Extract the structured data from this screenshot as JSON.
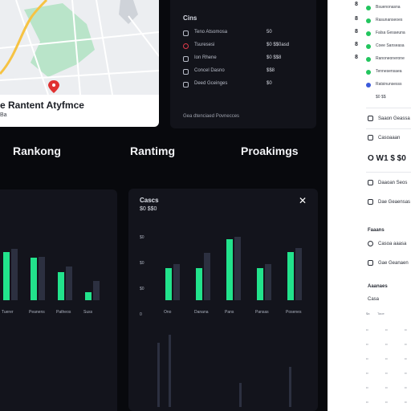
{
  "map": {
    "caption": "e Rantent Atyfmce",
    "subcaption": "Ba"
  },
  "stats": {
    "title": "Cins",
    "rows": [
      {
        "label": "Teno Atsomosa",
        "value": "50"
      },
      {
        "label": "Tsuresesi",
        "value": "$0 $$0asd"
      },
      {
        "label": "Ion Rhene",
        "value": "$0 $$8"
      },
      {
        "label": "Concel Dasno",
        "value": "$$8"
      },
      {
        "label": "Deed Gceinges",
        "value": "$0"
      }
    ],
    "footer": "Gea dtenciaed Povnecces"
  },
  "headings": {
    "left": "Rankong",
    "middle": "Rantimg",
    "right": "Proakimgs"
  },
  "chart_left": {
    "x_labels": [
      "Tuerer",
      "Peanens",
      "Patheos",
      "Suss"
    ]
  },
  "chart_mid": {
    "title": "Cascs",
    "subtitle": "$0 $$0",
    "y_labels": [
      "$0",
      "$0",
      "$0",
      "0"
    ],
    "x_labels": [
      "Ono",
      "Danana",
      "Pans",
      "Pansas",
      "Posenes"
    ]
  },
  "chart_data": [
    {
      "type": "bar",
      "categories": [
        "Tuerer",
        "Peanens",
        "Patheos",
        "Suss"
      ],
      "series": [
        {
          "values": [
            75,
            66,
            44,
            13
          ]
        },
        {
          "values": [
            80,
            68,
            52,
            30
          ]
        }
      ],
      "ylim": [
        0,
        100
      ]
    },
    {
      "type": "bar",
      "title": "Cascs",
      "categories": [
        "Ono",
        "Danana",
        "Pans",
        "Pansas",
        "Posenes"
      ],
      "series": [
        {
          "values": [
            45,
            44,
            84,
            45,
            67
          ]
        },
        {
          "values": [
            50,
            66,
            88,
            50,
            72
          ]
        }
      ],
      "ylim": [
        0,
        100
      ]
    }
  ],
  "right_panel": {
    "list": [
      {
        "text": "Bsuenonasna",
        "color": "#22c55e"
      },
      {
        "text": "Rasunanseoes",
        "color": "#22c55e"
      },
      {
        "text": "Falsa Gesaeuna",
        "color": "#22c55e"
      },
      {
        "text": "Coee Sanseasa",
        "color": "#22c55e"
      },
      {
        "text": "Ranoneonerone",
        "color": "#22c55e"
      },
      {
        "text": "Tennesensaea",
        "color": "#22c55e"
      },
      {
        "text": "Ratsinunsesss",
        "color": "#3b5bdb"
      }
    ],
    "row_value": "$0 $$",
    "items": [
      {
        "text": "Saaon Geassa"
      },
      {
        "text": "Casoaaan"
      }
    ],
    "big_value": "O W1 $ $0",
    "items2": [
      {
        "text": "Daaoan Seos"
      },
      {
        "text": "Dae Geaensas"
      }
    ],
    "section": "Faaans",
    "items3": [
      {
        "text": "Casoa aaasa"
      },
      {
        "text": "Gae Geanaen"
      }
    ],
    "section2": "Aaanaes",
    "section2_sub": "Casa",
    "grid_header": [
      "$a",
      "Taoe"
    ]
  }
}
